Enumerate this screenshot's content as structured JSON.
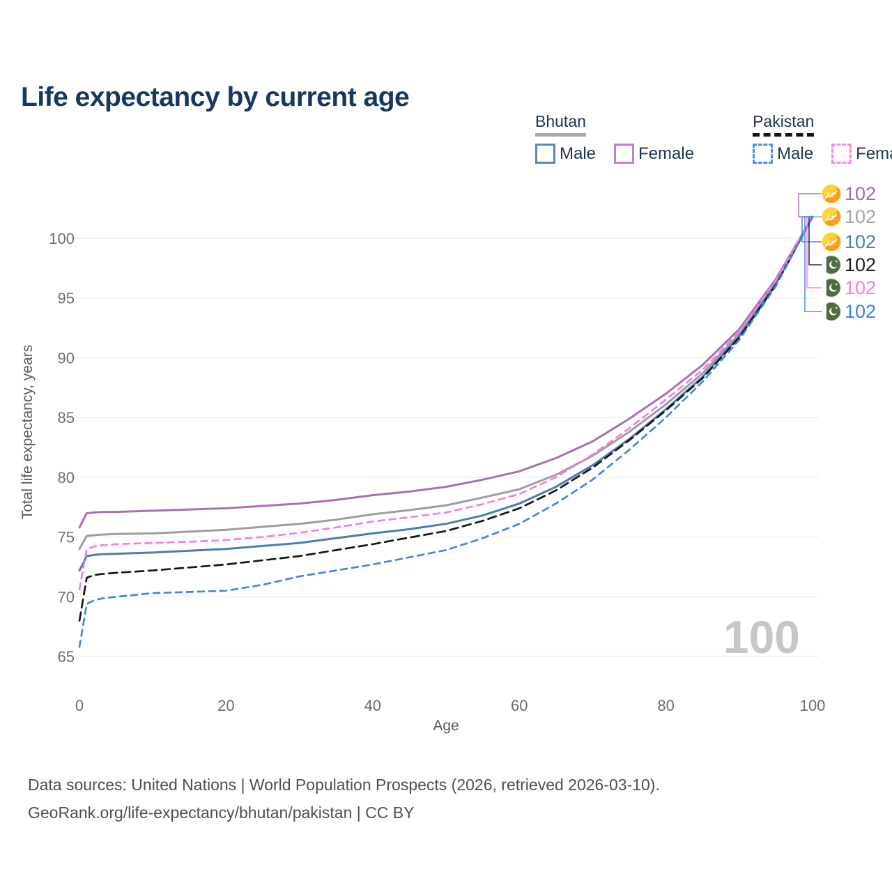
{
  "title": "Life expectancy by current age",
  "watermark": "100",
  "legend": {
    "groups": [
      {
        "country": "Bhutan",
        "line_style": "solid",
        "items": [
          {
            "label": "Male",
            "color": "#5b84c4"
          },
          {
            "label": "Female",
            "color": "#c17fc9"
          }
        ]
      },
      {
        "country": "Pakistan",
        "line_style": "dashed",
        "items": [
          {
            "label": "Male",
            "color": "#4a90f5"
          },
          {
            "label": "Female",
            "color": "#fb86ea"
          }
        ]
      }
    ]
  },
  "chart_data": {
    "type": "line",
    "title": "Life expectancy by current age",
    "xlabel": "Age",
    "ylabel": "Total life expectancy, years",
    "xlim": [
      0,
      100
    ],
    "ylim": [
      65,
      102
    ],
    "x_ticks": [
      "0",
      "20",
      "40",
      "60",
      "80",
      "100"
    ],
    "x_tick_values": [
      0,
      20,
      40,
      60,
      80,
      100
    ],
    "y_ticks": [
      "65",
      "70",
      "75",
      "80",
      "85",
      "90",
      "95",
      "100"
    ],
    "y_tick_values": [
      65,
      70,
      75,
      80,
      85,
      90,
      95,
      100
    ],
    "grid": "horizontal",
    "legend_position": "top-right",
    "x": [
      0,
      1,
      2,
      3,
      5,
      10,
      15,
      20,
      25,
      30,
      35,
      40,
      45,
      50,
      55,
      60,
      65,
      70,
      75,
      80,
      85,
      90,
      95,
      100
    ],
    "series": [
      {
        "name": "Bhutan Female",
        "country": "Bhutan",
        "sex": "Female",
        "dash": false,
        "color": "#a671b3",
        "label_color": "#9d6bb0",
        "flag": "bt",
        "end_label": "102",
        "values": [
          75.8,
          77.0,
          77.05,
          77.1,
          77.1,
          77.2,
          77.3,
          77.4,
          77.6,
          77.8,
          78.1,
          78.5,
          78.8,
          79.2,
          79.8,
          80.5,
          81.6,
          83.0,
          84.9,
          87.0,
          89.4,
          92.4,
          96.6,
          101.8
        ]
      },
      {
        "name": "Bhutan",
        "country": "Bhutan",
        "sex": "Both",
        "dash": false,
        "color": "#9d9d9d",
        "label_color": "#a3a3a3",
        "flag": "bt",
        "end_label": "102",
        "values": [
          74.0,
          75.1,
          75.15,
          75.2,
          75.25,
          75.3,
          75.45,
          75.6,
          75.85,
          76.1,
          76.45,
          76.9,
          77.25,
          77.65,
          78.3,
          79.0,
          80.2,
          81.8,
          83.8,
          86.1,
          88.7,
          92.0,
          96.4,
          101.8
        ]
      },
      {
        "name": "Bhutan Male",
        "country": "Bhutan",
        "sex": "Male",
        "dash": false,
        "color": "#4d7ab8",
        "label_color": "#4a7cc4",
        "flag": "bt",
        "end_label": "102",
        "values": [
          72.2,
          73.4,
          73.5,
          73.55,
          73.6,
          73.7,
          73.85,
          74.0,
          74.25,
          74.5,
          74.9,
          75.3,
          75.65,
          76.1,
          76.8,
          77.8,
          79.2,
          81.0,
          83.2,
          85.7,
          88.4,
          91.8,
          96.2,
          101.8
        ]
      },
      {
        "name": "Pakistan",
        "country": "Pakistan",
        "sex": "Both",
        "dash": true,
        "color": "#161616",
        "label_color": "#1c1c1c",
        "flag": "pk",
        "end_label": "102",
        "values": [
          68.0,
          71.6,
          71.8,
          71.9,
          72.0,
          72.2,
          72.45,
          72.7,
          73.05,
          73.4,
          73.9,
          74.4,
          74.95,
          75.5,
          76.35,
          77.4,
          78.9,
          80.8,
          83.1,
          85.6,
          88.3,
          91.7,
          96.1,
          101.8
        ]
      },
      {
        "name": "Pakistan Female",
        "country": "Pakistan",
        "sex": "Female",
        "dash": true,
        "color": "#fb7ae3",
        "label_color": "#f878e8",
        "flag": "pk",
        "end_label": "102",
        "values": [
          70.6,
          74.0,
          74.2,
          74.3,
          74.4,
          74.5,
          74.6,
          74.75,
          75.0,
          75.35,
          75.8,
          76.3,
          76.65,
          77.05,
          77.75,
          78.6,
          80.0,
          81.9,
          84.1,
          86.5,
          89.0,
          92.2,
          96.5,
          101.8
        ]
      },
      {
        "name": "Pakistan Male",
        "country": "Pakistan",
        "sex": "Male",
        "dash": true,
        "color": "#3f85f2",
        "label_color": "#3b82f2",
        "flag": "pk",
        "end_label": "102",
        "values": [
          65.8,
          69.4,
          69.7,
          69.85,
          70.0,
          70.3,
          70.4,
          70.5,
          71.0,
          71.7,
          72.2,
          72.7,
          73.3,
          73.9,
          74.9,
          76.1,
          77.8,
          79.8,
          82.3,
          85.0,
          88.0,
          91.5,
          96.0,
          101.8
        ]
      }
    ]
  },
  "footer": {
    "line1": "Data sources: United Nations | World Population Prospects (2026, retrieved 2026-03-10).",
    "line2": "GeoRank.org/life-expectancy/bhutan/pakistan | CC BY"
  }
}
